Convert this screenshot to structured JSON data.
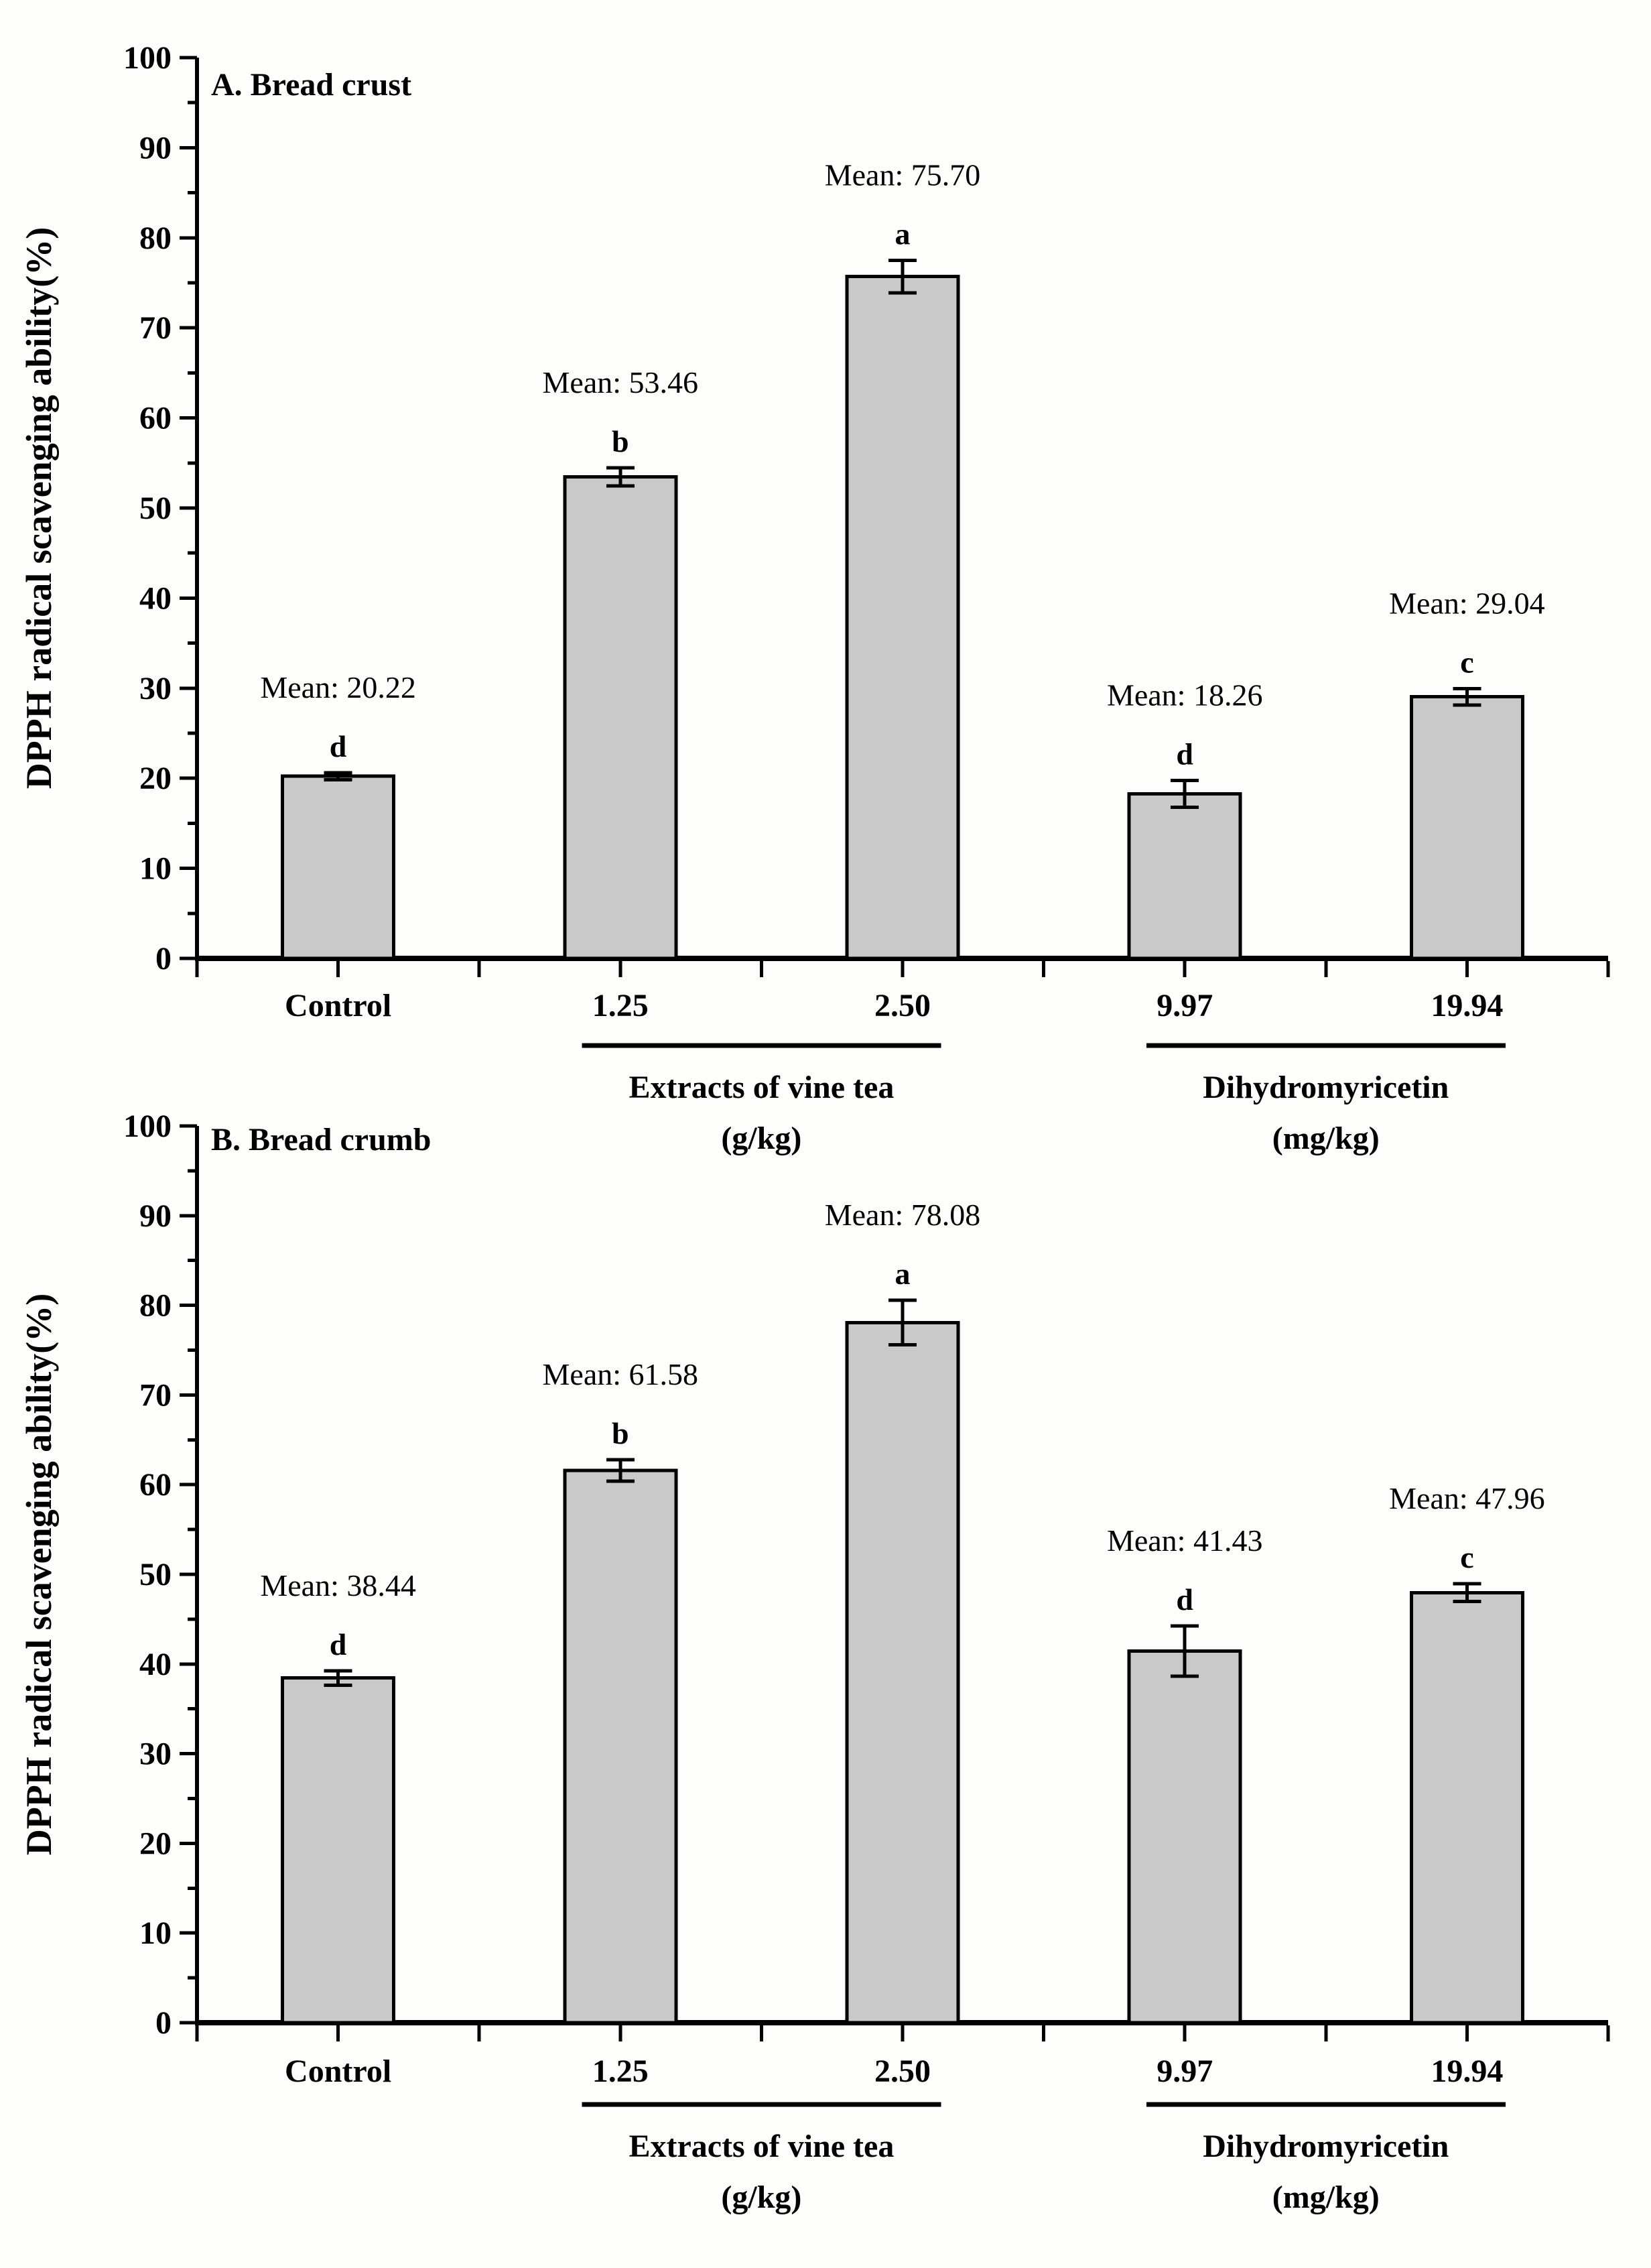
{
  "figure": {
    "background": "#fdfdfc",
    "bar_fill": "#c9c9c9",
    "bar_edge": "#000000",
    "text_color": "#000000"
  },
  "chart_data": [
    {
      "id": "A",
      "type": "bar",
      "title": "A. Bread crust",
      "ylabel": "DPPH radical scavenging ability(%)",
      "xlabel": "",
      "ylim": [
        0,
        100
      ],
      "ytick_step": 10,
      "yminor_step": 5,
      "grid": false,
      "legend_position": "none",
      "categories": [
        "Control",
        "1.25",
        "2.50",
        "9.97",
        "19.94"
      ],
      "values": [
        20.22,
        53.46,
        75.7,
        18.26,
        29.04
      ],
      "errors": [
        0.4,
        1.0,
        1.8,
        1.5,
        0.9
      ],
      "sig_letters": [
        "d",
        "b",
        "a",
        "d",
        "c"
      ],
      "mean_labels": [
        "Mean: 20.22",
        "Mean: 53.46",
        "Mean: 75.70",
        "Mean: 18.26",
        "Mean: 29.04"
      ],
      "groups": [
        {
          "label": "Extracts of vine tea",
          "unit": "(g/kg)",
          "from": "1.25",
          "to": "2.50"
        },
        {
          "label": "Dihydromyricetin",
          "unit": "(mg/kg)",
          "from": "9.97",
          "to": "19.94"
        }
      ]
    },
    {
      "id": "B",
      "type": "bar",
      "title": "B. Bread crumb",
      "ylabel": "DPPH radical scavenging ability(%)",
      "xlabel": "",
      "ylim": [
        0,
        100
      ],
      "ytick_step": 10,
      "yminor_step": 5,
      "grid": false,
      "legend_position": "none",
      "categories": [
        "Control",
        "1.25",
        "2.50",
        "9.97",
        "19.94"
      ],
      "values": [
        38.44,
        61.58,
        78.08,
        41.43,
        47.96
      ],
      "errors": [
        0.8,
        1.2,
        2.5,
        2.8,
        1.0
      ],
      "sig_letters": [
        "d",
        "b",
        "a",
        "d",
        "c"
      ],
      "mean_labels": [
        "Mean: 38.44",
        "Mean: 61.58",
        "Mean: 78.08",
        "Mean: 41.43",
        "Mean: 47.96"
      ],
      "groups": [
        {
          "label": "Extracts of vine tea",
          "unit": "(g/kg)",
          "from": "1.25",
          "to": "2.50"
        },
        {
          "label": "Dihydromyricetin",
          "unit": "(mg/kg)",
          "from": "9.97",
          "to": "19.94"
        }
      ]
    }
  ]
}
